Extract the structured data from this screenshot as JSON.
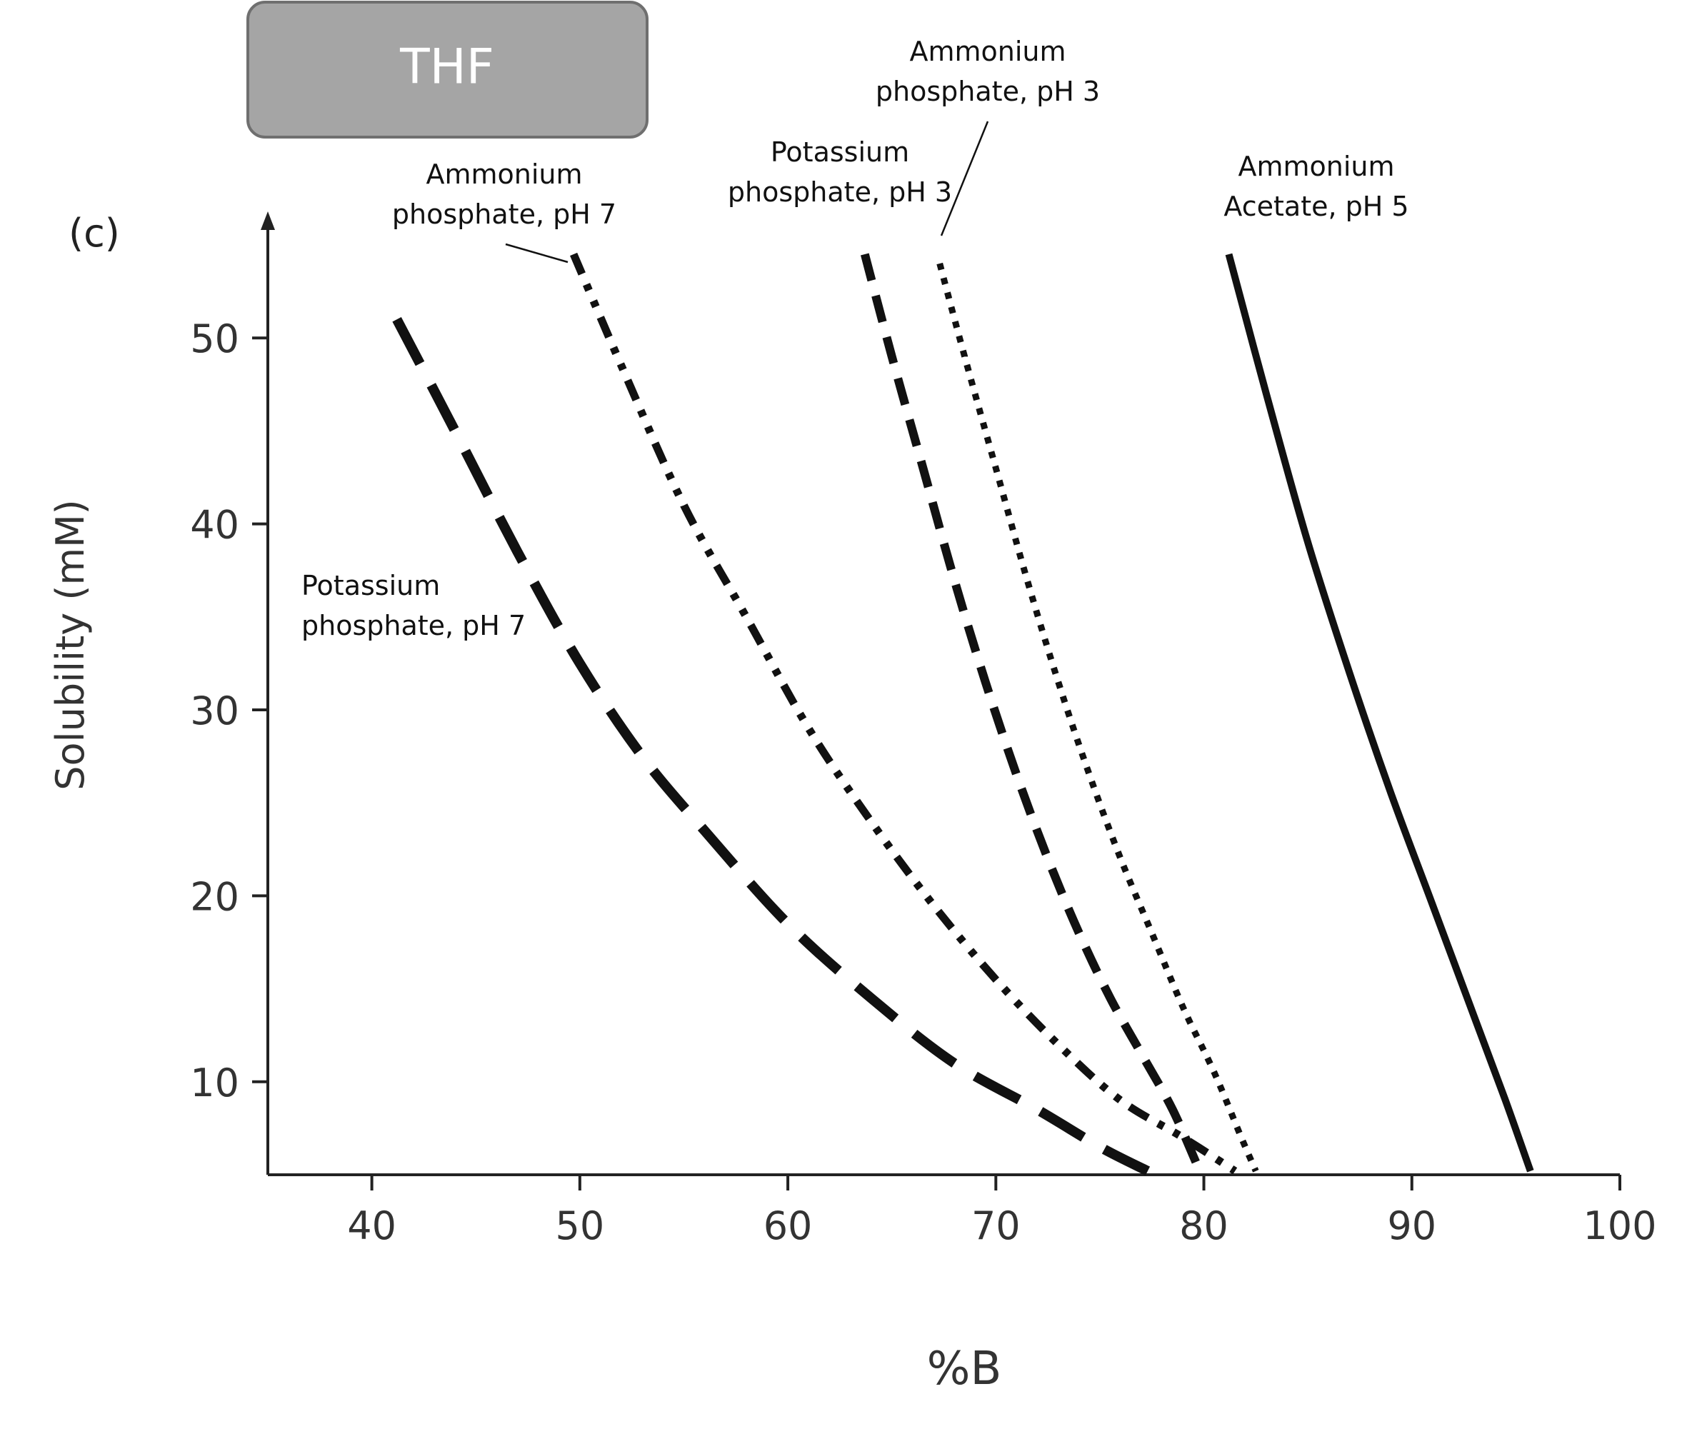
{
  "badge": {
    "label": "THF"
  },
  "panel_label": "(c)",
  "chart_data": {
    "type": "line",
    "title": "",
    "xlabel": "%B",
    "ylabel": "Solubility (mM)",
    "xlim": [
      35,
      100
    ],
    "ylim": [
      5,
      55
    ],
    "xticks": [
      40,
      50,
      60,
      70,
      80,
      90,
      100
    ],
    "yticks": [
      10,
      20,
      30,
      40,
      50
    ],
    "grid": false,
    "series": [
      {
        "name": "Potassium phosphate, pH 7",
        "style": "long-dash",
        "points": [
          [
            41.2,
            51
          ],
          [
            44,
            45
          ],
          [
            47,
            38.5
          ],
          [
            50,
            32.5
          ],
          [
            53,
            27.5
          ],
          [
            56,
            23.5
          ],
          [
            60,
            18.5
          ],
          [
            64,
            14.5
          ],
          [
            68,
            11
          ],
          [
            72,
            8.5
          ],
          [
            75,
            6.5
          ],
          [
            77.3,
            5.2
          ]
        ]
      },
      {
        "name": "Ammonium phosphate, pH 7",
        "style": "dash-dot-dot",
        "points": [
          [
            49.7,
            54.5
          ],
          [
            52,
            48.5
          ],
          [
            55,
            41
          ],
          [
            58,
            35
          ],
          [
            61,
            29
          ],
          [
            64,
            24
          ],
          [
            67,
            19.5
          ],
          [
            70,
            15.5
          ],
          [
            73,
            12
          ],
          [
            76,
            9
          ],
          [
            79,
            7
          ],
          [
            81.5,
            5.2
          ]
        ]
      },
      {
        "name": "Potassium phosphate, pH 3",
        "style": "dash",
        "points": [
          [
            63.7,
            54.5
          ],
          [
            65,
            49
          ],
          [
            66.5,
            43
          ],
          [
            68,
            37
          ],
          [
            69.5,
            31.5
          ],
          [
            71,
            26.5
          ],
          [
            72.5,
            22
          ],
          [
            74,
            18
          ],
          [
            75.5,
            14.5
          ],
          [
            77,
            11.5
          ],
          [
            78.5,
            8.5
          ],
          [
            79.8,
            5.2
          ]
        ]
      },
      {
        "name": "Ammonium phosphate, pH 3",
        "style": "dotted",
        "points": [
          [
            67.3,
            54
          ],
          [
            68.5,
            49
          ],
          [
            70,
            43
          ],
          [
            71.5,
            37
          ],
          [
            73,
            31.5
          ],
          [
            74.5,
            26.5
          ],
          [
            76,
            22
          ],
          [
            77.5,
            18
          ],
          [
            79,
            14
          ],
          [
            80.5,
            10.5
          ],
          [
            81.8,
            7
          ],
          [
            82.5,
            5.2
          ]
        ]
      },
      {
        "name": "Ammonium Acetate, pH 5",
        "style": "solid",
        "points": [
          [
            81.2,
            54.5
          ],
          [
            83,
            47
          ],
          [
            85,
            39
          ],
          [
            87,
            32
          ],
          [
            89,
            25.5
          ],
          [
            91,
            19.5
          ],
          [
            93,
            13.5
          ],
          [
            94.5,
            9
          ],
          [
            95.7,
            5.2
          ]
        ]
      }
    ],
    "annotations": [
      {
        "text": [
          "Ammonium",
          "phosphate, pH 7"
        ],
        "series": "Ammonium phosphate, pH 7"
      },
      {
        "text": [
          "Potassium",
          "phosphate, pH 3"
        ],
        "series": "Potassium phosphate, pH 3"
      },
      {
        "text": [
          "Ammonium",
          "phosphate, pH 3"
        ],
        "series": "Ammonium phosphate, pH 3"
      },
      {
        "text": [
          "Ammonium",
          "Acetate, pH 5"
        ],
        "series": "Ammonium Acetate, pH 5"
      },
      {
        "text": [
          "Potassium",
          "phosphate, pH 7"
        ],
        "series": "Potassium phosphate, pH 7"
      }
    ]
  }
}
